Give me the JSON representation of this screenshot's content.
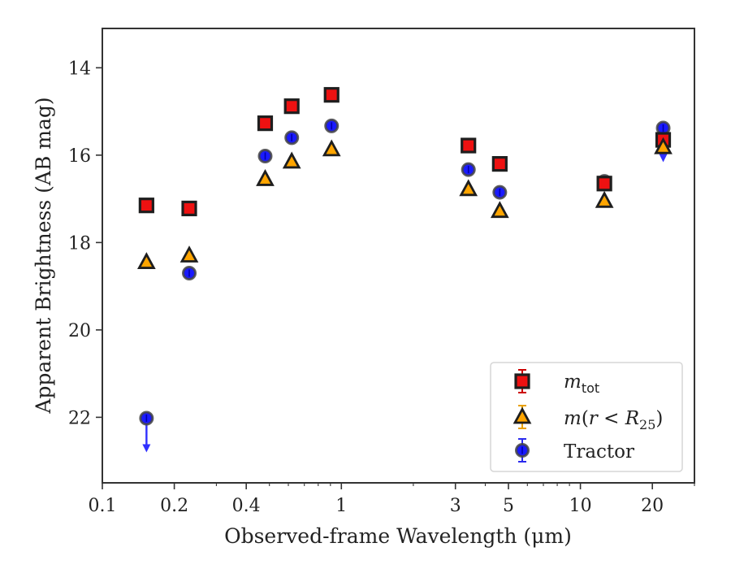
{
  "chart_data": {
    "type": "scatter",
    "xlabel": "Observed-frame Wavelength (μm)",
    "ylabel": "Apparent Brightness (AB mag)",
    "xscale": "log",
    "xlim": [
      0.1,
      30
    ],
    "ylim": [
      23.5,
      13.1
    ],
    "y_inverted": true,
    "grid": false,
    "legend_position": "bottom-right",
    "x_ticks": [
      {
        "value": 0.1,
        "label": "0.1"
      },
      {
        "value": 0.2,
        "label": "0.2"
      },
      {
        "value": 0.4,
        "label": "0.4"
      },
      {
        "value": 1,
        "label": "1"
      },
      {
        "value": 3,
        "label": "3"
      },
      {
        "value": 5,
        "label": "5"
      },
      {
        "value": 10,
        "label": "10"
      },
      {
        "value": 20,
        "label": "20"
      }
    ],
    "y_ticks": [
      {
        "value": 14,
        "label": "14"
      },
      {
        "value": 16,
        "label": "16"
      },
      {
        "value": 18,
        "label": "18"
      },
      {
        "value": 20,
        "label": "20"
      },
      {
        "value": 22,
        "label": "22"
      }
    ],
    "series": [
      {
        "name": "m_tot",
        "marker": "square",
        "color": "#ee1111",
        "errcolor": "#cc0000",
        "points": [
          {
            "x": 0.153,
            "y": 17.15
          },
          {
            "x": 0.231,
            "y": 17.22
          },
          {
            "x": 0.48,
            "y": 15.27
          },
          {
            "x": 0.62,
            "y": 14.88
          },
          {
            "x": 0.91,
            "y": 14.62
          },
          {
            "x": 3.4,
            "y": 15.78
          },
          {
            "x": 4.6,
            "y": 16.2
          },
          {
            "x": 12.6,
            "y": 16.65
          },
          {
            "x": 22.2,
            "y": 15.65
          }
        ]
      },
      {
        "name": "m(r < R25)",
        "marker": "triangle",
        "color": "#ffa500",
        "errcolor": "#e8a000",
        "points": [
          {
            "x": 0.153,
            "y": 18.45
          },
          {
            "x": 0.231,
            "y": 18.3
          },
          {
            "x": 0.48,
            "y": 16.55
          },
          {
            "x": 0.62,
            "y": 16.15
          },
          {
            "x": 0.91,
            "y": 15.87
          },
          {
            "x": 3.4,
            "y": 16.78
          },
          {
            "x": 4.6,
            "y": 17.28
          },
          {
            "x": 12.6,
            "y": 17.05
          },
          {
            "x": 22.2,
            "y": 15.82
          }
        ]
      },
      {
        "name": "Tractor",
        "marker": "circle",
        "color": "#1a1aff",
        "errcolor": "#2a2aee",
        "points": [
          {
            "x": 0.153,
            "y": 22.02,
            "upper_limit": true
          },
          {
            "x": 0.231,
            "y": 18.7
          },
          {
            "x": 0.48,
            "y": 16.02
          },
          {
            "x": 0.62,
            "y": 15.6
          },
          {
            "x": 0.91,
            "y": 15.33
          },
          {
            "x": 3.4,
            "y": 16.33
          },
          {
            "x": 4.6,
            "y": 16.85
          },
          {
            "x": 12.6,
            "y": 16.6
          },
          {
            "x": 22.2,
            "y": 15.38,
            "upper_limit": true
          }
        ]
      }
    ]
  }
}
